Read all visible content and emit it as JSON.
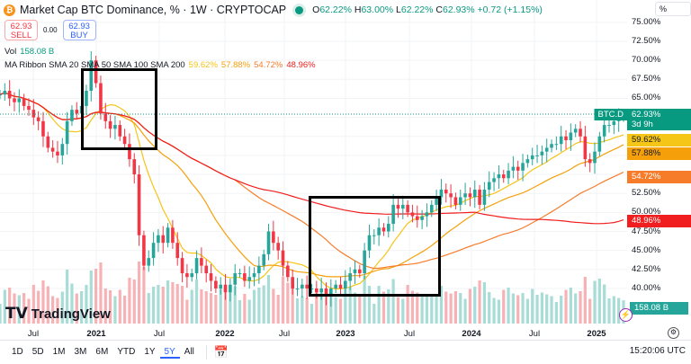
{
  "header": {
    "symbol_title": "Market Cap BTC Dominance, % · 1W · CRYPTOCAP",
    "coin_icon": "bitcoin-icon",
    "ohlc": {
      "o_label": "O",
      "o": "62.22%",
      "h_label": "H",
      "h": "63.00%",
      "l_label": "L",
      "l": "62.22%",
      "c_label": "C",
      "c": "62.93%",
      "change": "+0.72 (+1.15%)"
    }
  },
  "trade": {
    "sell_price": "62.93",
    "sell_label": "SELL",
    "spread": "0.00",
    "buy_price": "62.93",
    "buy_label": "BUY"
  },
  "volume": {
    "label": "Vol",
    "value": "158.08 B"
  },
  "ma_ribbon": {
    "label": "MA Ribbon SMA 20 SMA 50 SMA 100 SMA 200",
    "values": [
      "59.62%",
      "57.88%",
      "54.72%",
      "48.96%"
    ],
    "colors": [
      "#f5c518",
      "#f5a00b",
      "#f77c2a",
      "#f01e1e"
    ]
  },
  "price_axis": {
    "unit": "%",
    "ticks": [
      "75.00%",
      "72.50%",
      "70.00%",
      "67.50%",
      "65.00%",
      "52.50%",
      "50.00%",
      "47.50%",
      "45.00%",
      "42.50%",
      "40.00%"
    ],
    "tick_values": [
      75,
      72.5,
      70,
      67.5,
      65,
      52.5,
      50,
      47.5,
      45,
      42.5,
      40
    ]
  },
  "price_labels": {
    "symbol": "BTC.D",
    "last": "62.93%",
    "countdown": "3d 9h",
    "volume": "158.08 B"
  },
  "time_axis": [
    {
      "label": "Jul",
      "year": false
    },
    {
      "label": "2021",
      "year": true
    },
    {
      "label": "Jul",
      "year": false
    },
    {
      "label": "2022",
      "year": true
    },
    {
      "label": "Jul",
      "year": false
    },
    {
      "label": "2023",
      "year": true
    },
    {
      "label": "Jul",
      "year": false
    },
    {
      "label": "2024",
      "year": true
    },
    {
      "label": "Jul",
      "year": false
    },
    {
      "label": "2025",
      "year": true
    }
  ],
  "ranges": [
    "1D",
    "5D",
    "1M",
    "3M",
    "6M",
    "YTD",
    "1Y",
    "5Y",
    "All"
  ],
  "active_range": "5Y",
  "clock": "15:20:06 UTC",
  "brand": "TradingView",
  "colors": {
    "up": "#26a69a",
    "down": "#f23645",
    "last_price": "#089981"
  },
  "chart_data": {
    "type": "candlestick",
    "interval": "2W sampled closes",
    "start": "2020-03",
    "end": "2025-03",
    "ylim": [
      38,
      75
    ],
    "closes": [
      65.5,
      66,
      65,
      64.5,
      65,
      64,
      63.5,
      62.5,
      62,
      60,
      58.5,
      58,
      57.5,
      59,
      62,
      63.5,
      63,
      64,
      66,
      70,
      67,
      63,
      62,
      61,
      61.5,
      60,
      59,
      57,
      55,
      47,
      43,
      44,
      46,
      47,
      46,
      48,
      46,
      44,
      42,
      41.5,
      42,
      44,
      43,
      42,
      41,
      40,
      40.5,
      39.5,
      40.5,
      42,
      42,
      41,
      41.5,
      42,
      43,
      44.5,
      47.5,
      46,
      45,
      43,
      41.5,
      40,
      40,
      40.5,
      40,
      40,
      39.5,
      40,
      39,
      40,
      40.5,
      40,
      41,
      42,
      42.5,
      42,
      45,
      47,
      47,
      48,
      47.5,
      48.5,
      51,
      50.5,
      51,
      50,
      49.5,
      49,
      49.5,
      50,
      51,
      52,
      53,
      52.5,
      52,
      51,
      52,
      52.5,
      52,
      53,
      51,
      53,
      54,
      54.5,
      55,
      54.5,
      55.5,
      56,
      55.5,
      56.5,
      57,
      57.5,
      57.5,
      58,
      58.5,
      59,
      59,
      60,
      59.5,
      60.5,
      61,
      60,
      57,
      56.5,
      58,
      60,
      61.5,
      61.5,
      62,
      62.5,
      62.93
    ],
    "sma_periods_weeks": [
      20,
      50,
      100,
      200
    ]
  }
}
